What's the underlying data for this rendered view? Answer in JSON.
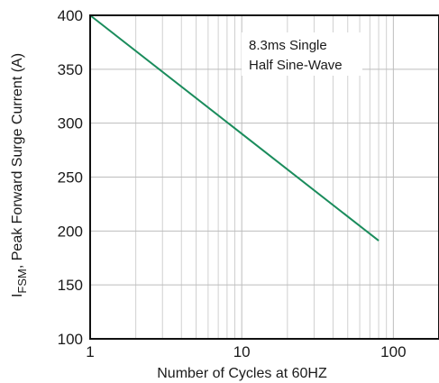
{
  "chart_data": {
    "type": "line",
    "title": "",
    "xlabel": "Number of Cycles at 60HZ",
    "ylabel": {
      "prefix": "I",
      "subscript": "FSM",
      "suffix": ", Peak Forward Surge Current (A)"
    },
    "x_scale": "log",
    "xlim": [
      1,
      200
    ],
    "ylim": [
      100,
      400
    ],
    "x_ticks": [
      1,
      10,
      100
    ],
    "x_tick_labels": [
      "1",
      "10",
      "100"
    ],
    "y_ticks": [
      100,
      150,
      200,
      250,
      300,
      350,
      400
    ],
    "y_tick_labels": [
      "100",
      "150",
      "200",
      "250",
      "300",
      "350",
      "400"
    ],
    "grid": true,
    "series": [
      {
        "x": [
          1,
          80
        ],
        "y": [
          400,
          191
        ],
        "color": "#1a8c5c"
      }
    ],
    "annotation": {
      "lines": [
        "8.3ms Single",
        "Half Sine-Wave"
      ]
    }
  }
}
